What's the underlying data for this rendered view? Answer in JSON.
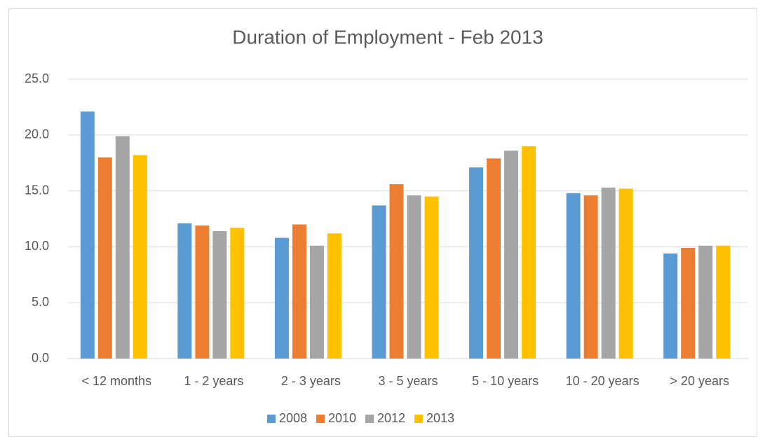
{
  "chart_data": {
    "type": "bar",
    "title": "Duration of Employment - Feb 2013",
    "categories": [
      "< 12 months",
      "1 - 2 years",
      "2 - 3 years",
      "3 - 5 years",
      "5 - 10 years",
      "10 - 20 years",
      "> 20 years"
    ],
    "series": [
      {
        "name": "2008",
        "color": "#5b9bd5",
        "values": [
          22.1,
          12.1,
          10.8,
          13.7,
          17.1,
          14.8,
          9.4
        ]
      },
      {
        "name": "2010",
        "color": "#ed7d31",
        "values": [
          18.0,
          11.9,
          12.0,
          15.6,
          17.9,
          14.6,
          9.9
        ]
      },
      {
        "name": "2012",
        "color": "#a5a5a5",
        "values": [
          19.9,
          11.4,
          10.1,
          14.6,
          18.6,
          15.3,
          10.1
        ]
      },
      {
        "name": "2013",
        "color": "#ffc000",
        "values": [
          18.2,
          11.7,
          11.2,
          14.5,
          19.0,
          15.2,
          10.1
        ]
      }
    ],
    "ylim": [
      0,
      25
    ],
    "yticks": [
      {
        "value": 0,
        "label": "0.0"
      },
      {
        "value": 5,
        "label": "5.0"
      },
      {
        "value": 10,
        "label": "10.0"
      },
      {
        "value": 15,
        "label": "15.0"
      },
      {
        "value": 20,
        "label": "20.0"
      },
      {
        "value": 25,
        "label": "25.0"
      }
    ],
    "grid": true,
    "legend": "bottom"
  }
}
